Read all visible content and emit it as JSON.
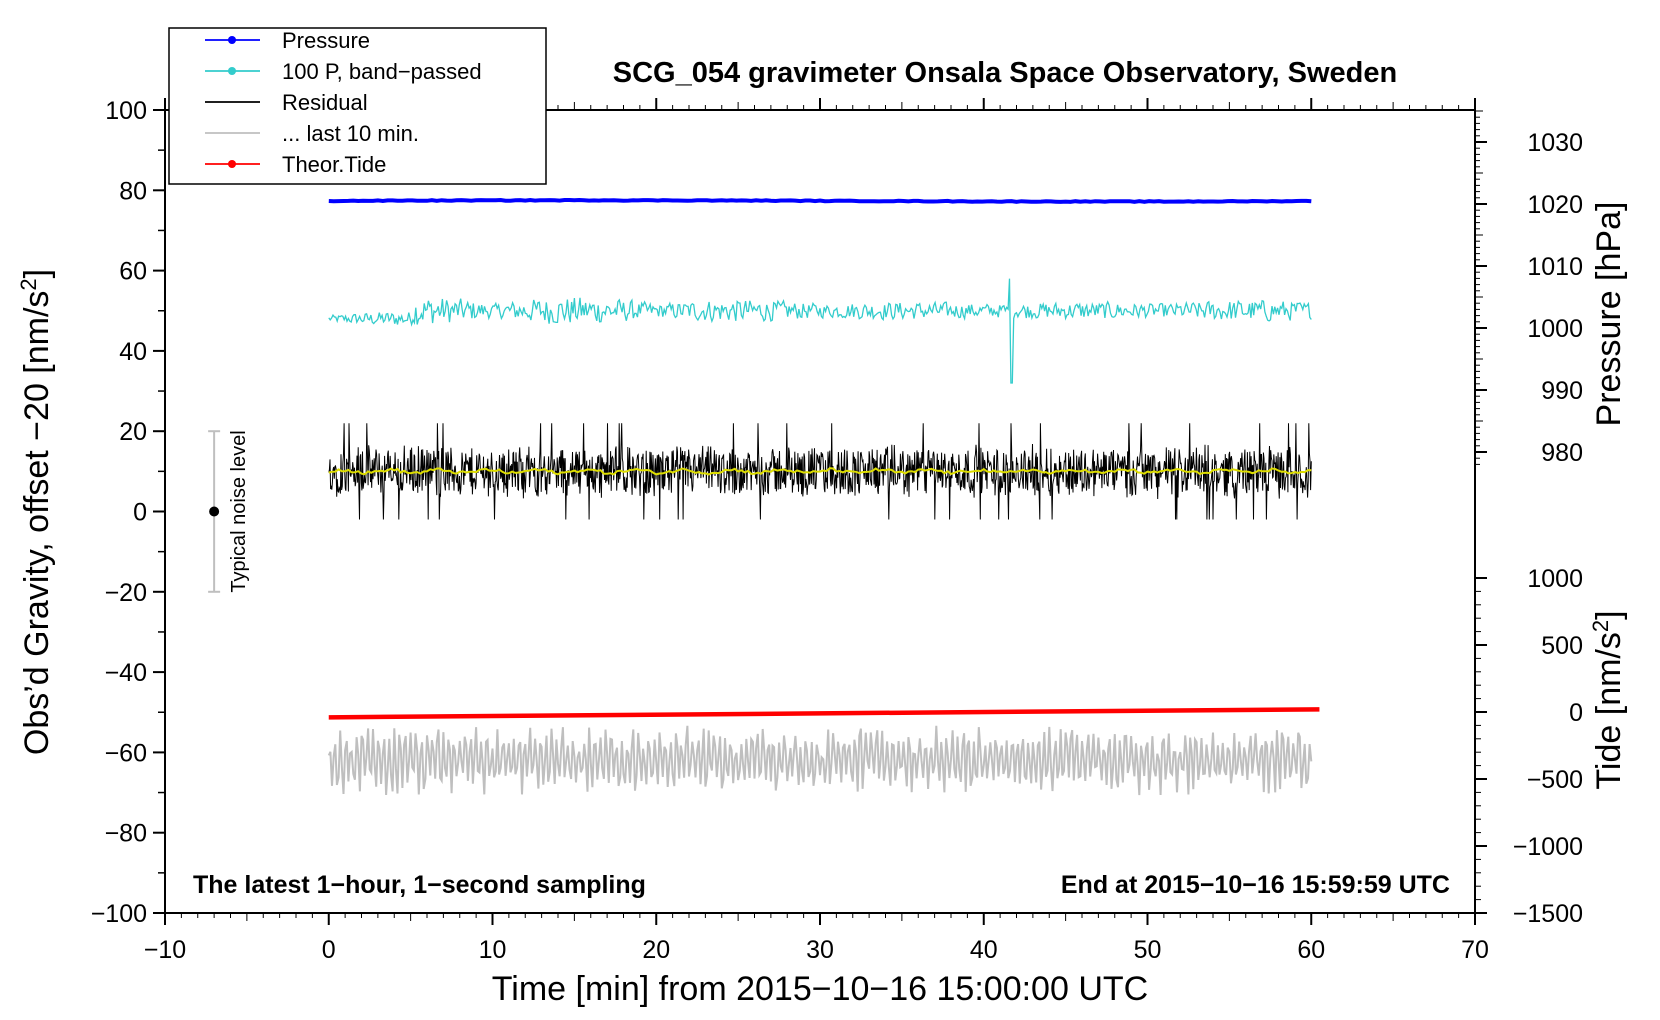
{
  "chart_data": {
    "type": "line",
    "title": "SCG_054 gravimeter Onsala Space Observatory, Sweden",
    "xlabel": "Time [min] from 2015−10−16 15:00:00 UTC",
    "ylabel_left_main": "Obs’d Gravity, offset −20 [nm/s",
    "ylabel_left_sup": "2",
    "ylabel_left_end": "]",
    "ylabel_right_pressure": "Pressure [hPa]",
    "ylabel_right_tide_main": "Tide [nm/s",
    "ylabel_right_tide_sup": "2",
    "ylabel_right_tide_end": "]",
    "xlim": [
      -10,
      70
    ],
    "ylim_left": [
      -100,
      100
    ],
    "x_ticks": [
      "−10",
      "0",
      "10",
      "20",
      "30",
      "40",
      "50",
      "60",
      "70"
    ],
    "y_ticks_left": [
      "100",
      "80",
      "60",
      "40",
      "20",
      "0",
      "−20",
      "−40",
      "−60",
      "−80",
      "−100"
    ],
    "y_ticks_pressure": [
      "1030",
      "1020",
      "1010",
      "1000",
      "990",
      "980"
    ],
    "y_ticks_tide": [
      "1000",
      "500",
      "0",
      "−500",
      "−1000",
      "−1500"
    ],
    "pressure_axis_values": [
      1030,
      1020,
      1010,
      1000,
      990,
      980
    ],
    "tide_axis_values": [
      1000,
      500,
      0,
      -500,
      -1000,
      -1500
    ],
    "note_left": "The latest 1−hour, 1−second sampling",
    "note_right": "End at 2015−10−16 15:59:59 UTC",
    "noise_label": "Typical noise level",
    "noise_bar": {
      "x": -7,
      "center": 0,
      "low": -20,
      "high": 20
    },
    "legend_position": "top-left",
    "legend": [
      {
        "label": "Pressure",
        "color": "#0000ff",
        "marker": true
      },
      {
        "label": "100 P, band−passed",
        "color": "#33cccc",
        "marker": true
      },
      {
        "label": "Residual",
        "color": "#000000",
        "marker": false
      },
      {
        "label": "... last 10 min.",
        "color": "#bfbfbf",
        "marker": false
      },
      {
        "label": "Theor.Tide",
        "color": "#ff0000",
        "marker": true
      }
    ],
    "series": [
      {
        "name": "Pressure",
        "unit": "hPa",
        "color": "#0000ff",
        "x_range": [
          0,
          60
        ],
        "value": 1020.5,
        "variation": 0.2
      },
      {
        "name": "100 P, band−passed",
        "unit": "nm/s2",
        "color": "#33cccc",
        "x_range": [
          0,
          60
        ],
        "center": 50,
        "amplitude": 4,
        "spike": {
          "x": 41.7,
          "min": 32,
          "max": 58
        }
      },
      {
        "name": "Residual",
        "unit": "nm/s2",
        "color": "#000000",
        "x_range": [
          0,
          60
        ],
        "center": 10,
        "amplitude": 7,
        "range": [
          -4,
          24
        ]
      },
      {
        "name": "Residual smoothed",
        "unit": "nm/s2",
        "color": "#dddd00",
        "x_range": [
          0,
          60
        ],
        "center": 10,
        "amplitude": 0.8
      },
      {
        "name": "Theor.Tide",
        "unit": "nm/s2",
        "color": "#ff0000",
        "x": [
          0,
          60.5
        ],
        "y": [
          -40,
          20
        ]
      },
      {
        "name": "... last 10 min.",
        "unit": "nm/s2",
        "color": "#bfbfbf",
        "x_range": [
          0,
          60
        ],
        "center": -62,
        "amplitude": 8
      }
    ]
  }
}
